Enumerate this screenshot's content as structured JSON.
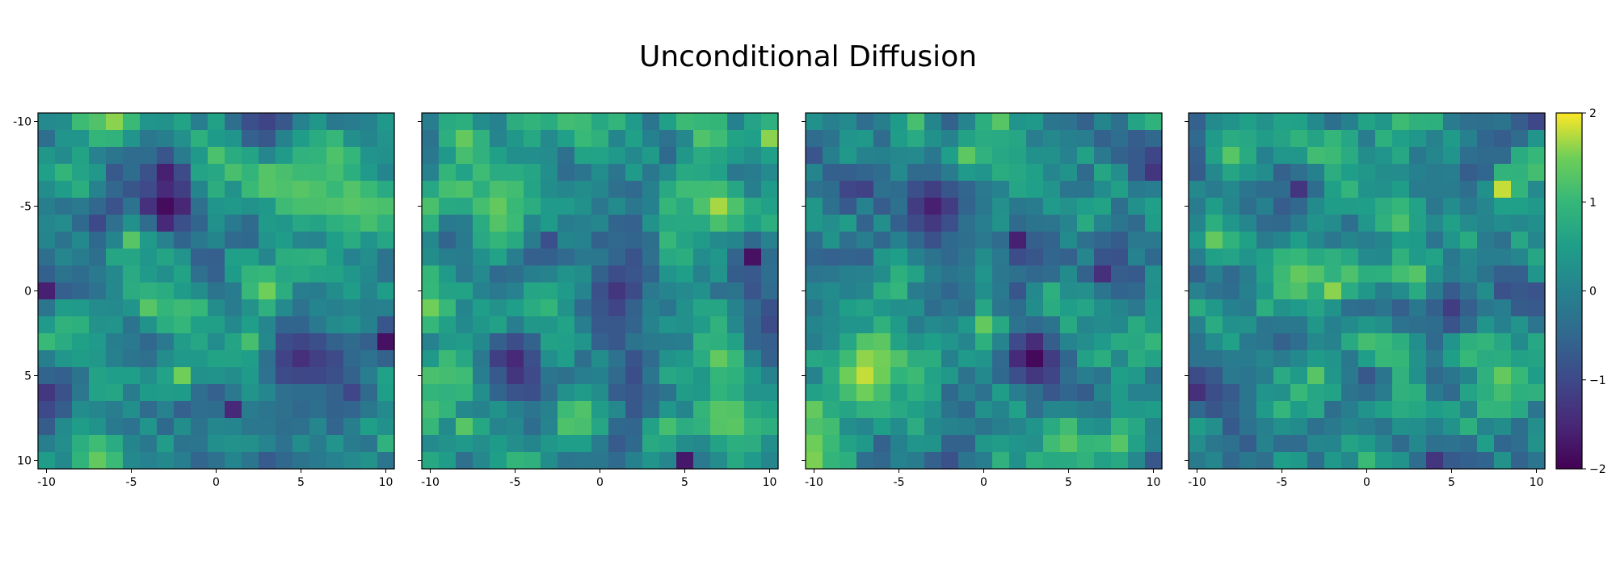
{
  "chart_data": {
    "type": "heatmap",
    "title": "Unconditional Diffusion",
    "panel_count": 4,
    "grid": false,
    "colormap": "viridis",
    "xlim": [
      -10.5,
      10.5
    ],
    "ylim": [
      10.5,
      -10.5
    ],
    "x_ticks": [
      -10,
      -5,
      0,
      5,
      10
    ],
    "x_tick_labels": [
      "-10",
      "-5",
      "0",
      "5",
      "10"
    ],
    "y_ticks": [
      -10,
      -5,
      0,
      5,
      10
    ],
    "y_tick_labels": [
      "-10",
      "-5",
      "0",
      "5",
      "10"
    ],
    "y_tick_labels_on_first_panel_only": true,
    "colorbar": {
      "range": [
        -2,
        2
      ],
      "ticks": [
        2,
        1,
        0,
        -1,
        -2
      ],
      "tick_labels": [
        "2",
        "1",
        "0",
        "−1",
        "−2"
      ],
      "placement": "right"
    },
    "grid_size": [
      21,
      21
    ],
    "value_range": [
      -2,
      2
    ],
    "features": [
      [
        {
          "x": -3,
          "y": -5,
          "value": -1.9,
          "radius": 1.4
        },
        {
          "x": -3,
          "y": -7,
          "value": -1.6,
          "radius": 0.9
        },
        {
          "x": -6,
          "y": -10,
          "value": 1.6,
          "radius": 1.0
        },
        {
          "x": 5,
          "y": -6,
          "value": 1.3,
          "radius": 1.6
        },
        {
          "x": 8,
          "y": -5,
          "value": 1.3,
          "radius": 1.0
        },
        {
          "x": -5,
          "y": -3,
          "value": 1.3,
          "radius": 0.7
        },
        {
          "x": 3,
          "y": 0,
          "value": 1.5,
          "radius": 0.8
        },
        {
          "x": -4,
          "y": 1,
          "value": 1.3,
          "radius": 0.6
        },
        {
          "x": 2,
          "y": 3,
          "value": 1.3,
          "radius": 1.0
        },
        {
          "x": 5,
          "y": 4,
          "value": -1.4,
          "radius": 1.3
        },
        {
          "x": 10,
          "y": 3,
          "value": -1.8,
          "radius": 0.8
        },
        {
          "x": -10,
          "y": 0,
          "value": -1.6,
          "radius": 0.6
        },
        {
          "x": -2,
          "y": 5,
          "value": 1.5,
          "radius": 0.6
        },
        {
          "x": -7,
          "y": 10,
          "value": 1.4,
          "radius": 1.2
        },
        {
          "x": 1,
          "y": 7,
          "value": -1.5,
          "radius": 0.7
        }
      ],
      [
        {
          "x": -8,
          "y": -9,
          "value": 1.4,
          "radius": 1.2
        },
        {
          "x": -6,
          "y": -5,
          "value": 1.4,
          "radius": 1.2
        },
        {
          "x": 7,
          "y": -5,
          "value": 1.7,
          "radius": 1.3
        },
        {
          "x": 10,
          "y": -9,
          "value": 1.6,
          "radius": 0.8
        },
        {
          "x": 9,
          "y": -2,
          "value": -1.8,
          "radius": 0.9
        },
        {
          "x": -10,
          "y": 1,
          "value": 1.5,
          "radius": 0.8
        },
        {
          "x": -5,
          "y": 4,
          "value": -1.5,
          "radius": 1.2
        },
        {
          "x": 7,
          "y": 4,
          "value": 1.4,
          "radius": 0.9
        },
        {
          "x": 5,
          "y": 10,
          "value": -1.7,
          "radius": 0.7
        },
        {
          "x": 7,
          "y": 7,
          "value": 1.3,
          "radius": 0.8
        },
        {
          "x": 1,
          "y": 0,
          "value": -1.3,
          "radius": 1.5
        },
        {
          "x": -8,
          "y": 8,
          "value": 1.3,
          "radius": 0.5
        }
      ],
      [
        {
          "x": -1,
          "y": -8,
          "value": 1.6,
          "radius": 0.9
        },
        {
          "x": -3,
          "y": -5,
          "value": -1.6,
          "radius": 1.6
        },
        {
          "x": 2,
          "y": -3,
          "value": -1.6,
          "radius": 0.8
        },
        {
          "x": 3,
          "y": 4,
          "value": -1.9,
          "radius": 1.3
        },
        {
          "x": -7,
          "y": 5,
          "value": 1.8,
          "radius": 1.4
        },
        {
          "x": 0,
          "y": 2,
          "value": 1.4,
          "radius": 0.6
        },
        {
          "x": 7,
          "y": -1,
          "value": -1.4,
          "radius": 0.6
        },
        {
          "x": 10,
          "y": -7,
          "value": -1.3,
          "radius": 0.8
        },
        {
          "x": -10,
          "y": 7,
          "value": 1.4,
          "radius": 0.8
        },
        {
          "x": 5,
          "y": 9,
          "value": 1.3,
          "radius": 0.9
        },
        {
          "x": 8,
          "y": 9,
          "value": 1.3,
          "radius": 0.8
        }
      ],
      [
        {
          "x": -8,
          "y": -8,
          "value": 1.3,
          "radius": 0.9
        },
        {
          "x": -9,
          "y": -3,
          "value": 1.4,
          "radius": 1.0
        },
        {
          "x": -4,
          "y": -1,
          "value": 1.4,
          "radius": 1.3
        },
        {
          "x": 8,
          "y": -6,
          "value": 1.8,
          "radius": 0.7
        },
        {
          "x": -2,
          "y": 0,
          "value": 1.6,
          "radius": 0.5
        },
        {
          "x": 8,
          "y": 5,
          "value": 1.4,
          "radius": 1.1
        },
        {
          "x": -10,
          "y": 6,
          "value": -1.4,
          "radius": 0.9
        },
        {
          "x": -4,
          "y": -6,
          "value": -1.3,
          "radius": 0.7
        },
        {
          "x": 2,
          "y": -4,
          "value": 1.2,
          "radius": 1.0
        },
        {
          "x": 5,
          "y": 1,
          "value": -1.2,
          "radius": 1.2
        },
        {
          "x": -3,
          "y": 5,
          "value": 1.3,
          "radius": 0.8
        },
        {
          "x": 4,
          "y": 10,
          "value": -1.3,
          "radius": 0.8
        }
      ]
    ]
  }
}
